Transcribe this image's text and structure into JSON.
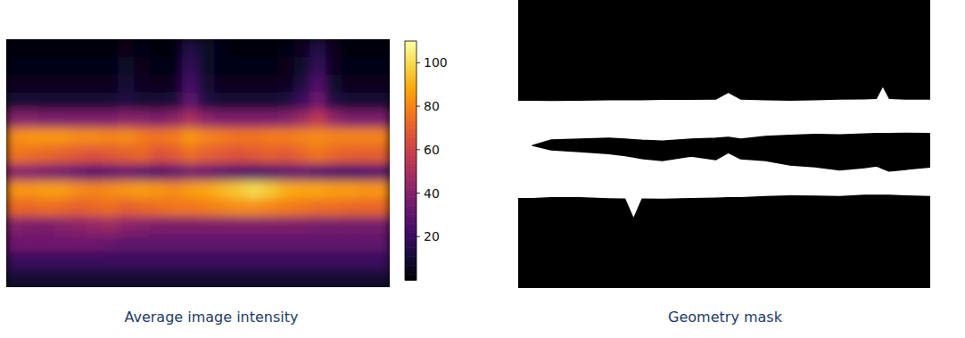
{
  "chart_data": [
    {
      "type": "heatmap",
      "title": "Average image intensity",
      "tick_labels": false,
      "colorbar": {
        "range": [
          0,
          110
        ],
        "ticks": [
          20,
          40,
          60,
          80,
          100
        ]
      },
      "cells": [
        [
          2,
          2,
          2,
          2,
          2,
          2,
          2,
          4,
          3,
          2,
          2,
          14,
          8,
          3,
          2,
          2,
          2,
          3,
          6,
          14,
          5,
          2,
          2,
          2
        ],
        [
          3,
          3,
          3,
          3,
          3,
          3,
          3,
          8,
          4,
          3,
          3,
          18,
          8,
          3,
          3,
          3,
          3,
          4,
          8,
          18,
          6,
          3,
          3,
          3
        ],
        [
          5,
          5,
          5,
          5,
          5,
          5,
          5,
          10,
          6,
          5,
          6,
          22,
          10,
          5,
          5,
          5,
          5,
          6,
          12,
          26,
          8,
          5,
          5,
          5
        ],
        [
          10,
          10,
          10,
          10,
          10,
          10,
          10,
          14,
          10,
          10,
          12,
          30,
          14,
          10,
          10,
          10,
          10,
          12,
          20,
          34,
          14,
          10,
          10,
          10
        ],
        [
          40,
          40,
          38,
          38,
          38,
          38,
          38,
          42,
          40,
          38,
          42,
          50,
          42,
          38,
          38,
          38,
          38,
          40,
          46,
          56,
          44,
          38,
          38,
          38
        ],
        [
          82,
          84,
          84,
          84,
          82,
          82,
          80,
          82,
          78,
          76,
          78,
          84,
          80,
          78,
          76,
          76,
          78,
          78,
          80,
          82,
          80,
          80,
          80,
          80
        ],
        [
          76,
          74,
          72,
          70,
          68,
          66,
          68,
          70,
          72,
          66,
          68,
          74,
          70,
          68,
          66,
          68,
          70,
          68,
          72,
          76,
          72,
          70,
          70,
          70
        ],
        [
          42,
          40,
          38,
          36,
          32,
          28,
          30,
          34,
          30,
          28,
          30,
          36,
          34,
          30,
          28,
          26,
          28,
          30,
          32,
          28,
          26,
          24,
          26,
          28
        ],
        [
          84,
          84,
          86,
          86,
          82,
          80,
          82,
          84,
          86,
          84,
          82,
          86,
          88,
          92,
          96,
          100,
          96,
          90,
          88,
          88,
          86,
          86,
          84,
          84
        ],
        [
          72,
          72,
          74,
          72,
          70,
          72,
          74,
          70,
          72,
          74,
          76,
          76,
          78,
          80,
          82,
          82,
          80,
          78,
          76,
          74,
          74,
          72,
          72,
          72
        ],
        [
          40,
          38,
          38,
          40,
          42,
          44,
          46,
          42,
          40,
          38,
          38,
          38,
          38,
          38,
          38,
          38,
          38,
          38,
          38,
          36,
          36,
          36,
          36,
          36
        ],
        [
          34,
          34,
          34,
          34,
          34,
          34,
          32,
          30,
          30,
          30,
          30,
          30,
          30,
          30,
          30,
          30,
          30,
          30,
          30,
          30,
          30,
          30,
          30,
          30
        ],
        [
          20,
          20,
          20,
          20,
          20,
          20,
          20,
          20,
          20,
          20,
          20,
          20,
          20,
          20,
          20,
          20,
          20,
          20,
          20,
          20,
          20,
          20,
          20,
          20
        ],
        [
          10,
          10,
          10,
          10,
          10,
          10,
          10,
          10,
          10,
          10,
          10,
          10,
          10,
          10,
          10,
          10,
          10,
          10,
          10,
          10,
          10,
          10,
          10,
          10
        ]
      ]
    },
    {
      "type": "mask",
      "title": "Geometry mask",
      "tick_labels": false,
      "xlim": [
        0,
        100
      ],
      "ylim": [
        0,
        100
      ],
      "x": [
        0,
        3.5,
        8,
        15,
        22,
        26,
        28,
        30,
        35,
        42,
        48,
        51,
        54,
        60,
        66,
        72,
        78,
        84,
        87,
        88.5,
        90,
        94,
        100
      ],
      "upper_top": [
        35.0,
        35.0,
        35.1,
        35.0,
        34.8,
        34.8,
        34.8,
        34.8,
        34.7,
        34.7,
        34.6,
        32.3,
        34.6,
        34.8,
        35.0,
        34.8,
        34.6,
        34.5,
        34.4,
        30.3,
        34.4,
        34.6,
        34.6
      ],
      "middle_top": [
        null,
        50.5,
        48.6,
        48.3,
        48.0,
        48.3,
        48.5,
        48.7,
        49.0,
        48.3,
        48.0,
        47.7,
        48.3,
        47.4,
        47.0,
        46.7,
        46.8,
        46.5,
        46.4,
        46.4,
        46.4,
        46.3,
        46.4
      ],
      "middle_bottom": [
        null,
        50.5,
        52.0,
        52.6,
        53.3,
        54.0,
        54.5,
        55.0,
        55.7,
        54.2,
        55.4,
        53.0,
        55.1,
        55.7,
        57.3,
        57.9,
        59.0,
        58.2,
        57.6,
        58.5,
        59.4,
        58.8,
        58.0
      ],
      "lower_bottom": [
        68.7,
        68.7,
        68.4,
        68.4,
        68.8,
        68.9,
        75.5,
        68.9,
        69.0,
        68.7,
        68.6,
        68.4,
        68.4,
        68.0,
        67.8,
        67.9,
        68.0,
        67.6,
        67.6,
        67.6,
        67.6,
        67.8,
        68.0
      ]
    }
  ]
}
